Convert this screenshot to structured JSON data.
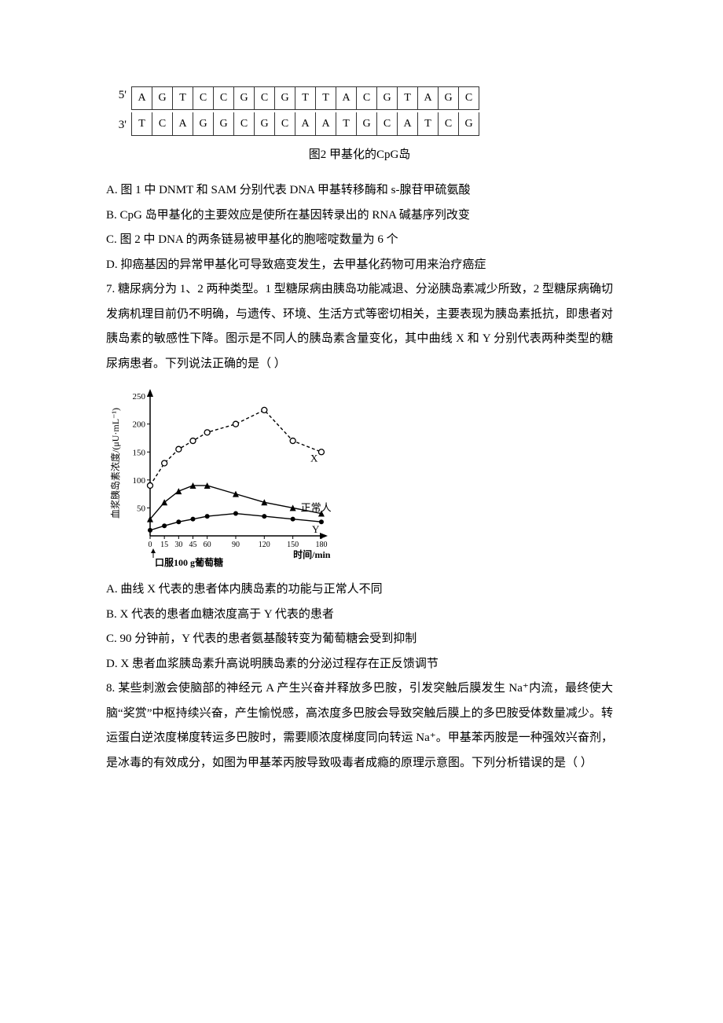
{
  "figure2": {
    "top_label": "5'",
    "bot_label": "3'",
    "top_strand": [
      "A",
      "G",
      "T",
      "C",
      "C",
      "G",
      "C",
      "G",
      "T",
      "T",
      "A",
      "C",
      "G",
      "T",
      "A",
      "G",
      "C"
    ],
    "bot_strand": [
      "T",
      "C",
      "A",
      "G",
      "G",
      "C",
      "G",
      "C",
      "A",
      "A",
      "T",
      "G",
      "C",
      "A",
      "T",
      "C",
      "G"
    ],
    "caption": "图2 甲基化的CpG岛"
  },
  "q6": {
    "optA": "A. 图 1 中 DNMT 和 SAM 分别代表 DNA 甲基转移酶和 s-腺苷甲硫氨酸",
    "optB": "B. CpG 岛甲基化的主要效应是使所在基因转录出的 RNA 碱基序列改变",
    "optC": "C. 图 2 中 DNA 的两条链易被甲基化的胞嘧啶数量为 6 个",
    "optD": "D. 抑癌基因的异常甲基化可导致癌变发生，去甲基化药物可用来治疗癌症"
  },
  "q7": {
    "stem": "7. 糖尿病分为 1、2 两种类型。1 型糖尿病由胰岛功能减退、分泌胰岛素减少所致，2 型糖尿病确切发病机理目前仍不明确，与遗传、环境、生活方式等密切相关，主要表现为胰岛素抵抗，即患者对胰岛素的敏感性下降。图示是不同人的胰岛素含量变化，其中曲线 X 和 Y 分别代表两种类型的糖尿病患者。下列说法正确的是（     ）",
    "chart": {
      "ylabel": "血浆胰岛素浓度/(μU·mL⁻¹)",
      "xlabel": "时间/min",
      "xfoot": "口服100 g葡萄糖",
      "y_ticks": [
        50,
        100,
        150,
        200,
        250
      ],
      "x_ticks": [
        "0",
        "15",
        "30",
        "45",
        "60",
        "90",
        "120",
        "150",
        "180"
      ],
      "series": {
        "X": {
          "label": "X",
          "marker": "open-circle",
          "dash": true,
          "color": "#000000",
          "points": [
            [
              0,
              90
            ],
            [
              15,
              130
            ],
            [
              30,
              155
            ],
            [
              45,
              170
            ],
            [
              60,
              185
            ],
            [
              90,
              200
            ],
            [
              120,
              225
            ],
            [
              150,
              170
            ],
            [
              180,
              150
            ]
          ]
        },
        "normal": {
          "label": "正常人",
          "marker": "triangle",
          "dash": false,
          "color": "#000000",
          "points": [
            [
              0,
              30
            ],
            [
              15,
              60
            ],
            [
              30,
              80
            ],
            [
              45,
              90
            ],
            [
              60,
              90
            ],
            [
              90,
              75
            ],
            [
              120,
              60
            ],
            [
              150,
              50
            ],
            [
              180,
              40
            ]
          ]
        },
        "Y": {
          "label": "Y",
          "marker": "dot",
          "dash": false,
          "color": "#000000",
          "points": [
            [
              0,
              10
            ],
            [
              15,
              18
            ],
            [
              30,
              25
            ],
            [
              45,
              30
            ],
            [
              60,
              35
            ],
            [
              90,
              40
            ],
            [
              120,
              35
            ],
            [
              150,
              30
            ],
            [
              180,
              25
            ]
          ]
        }
      },
      "axis_color": "#000000",
      "tick_fontsize": 11
    },
    "optA": "A. 曲线 X 代表的患者体内胰岛素的功能与正常人不同",
    "optB": "B. X 代表的患者血糖浓度高于 Y 代表的患者",
    "optC": "C. 90 分钟前，Y 代表的患者氨基酸转变为葡萄糖会受到抑制",
    "optD": "D. X 患者血浆胰岛素升高说明胰岛素的分泌过程存在正反馈调节"
  },
  "q8": {
    "stem": "8. 某些刺激会使脑部的神经元 A 产生兴奋并释放多巴胺，引发突触后膜发生 Na⁺内流，最终使大脑“奖赏”中枢持续兴奋，产生愉悦感，高浓度多巴胺会导致突触后膜上的多巴胺受体数量减少。转运蛋白逆浓度梯度转运多巴胺时，需要顺浓度梯度同向转运 Na⁺。甲基苯丙胺是一种强效兴奋剂，是冰毒的有效成分，如图为甲基苯丙胺导致吸毒者成瘾的原理示意图。下列分析错误的是（     ）"
  }
}
